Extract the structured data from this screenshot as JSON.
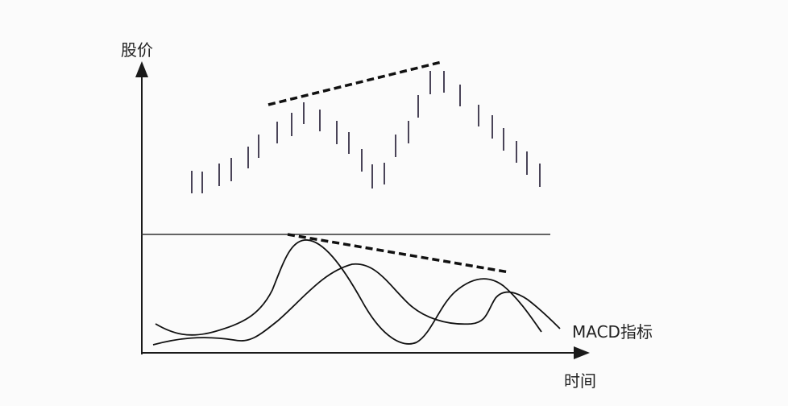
{
  "labels": {
    "y_axis": "股价",
    "x_axis": "时间",
    "indicator": "MACD指标"
  },
  "colors": {
    "line": "#1a1a1a",
    "bar": "#4a4458",
    "background": "#fbfbfb"
  }
}
